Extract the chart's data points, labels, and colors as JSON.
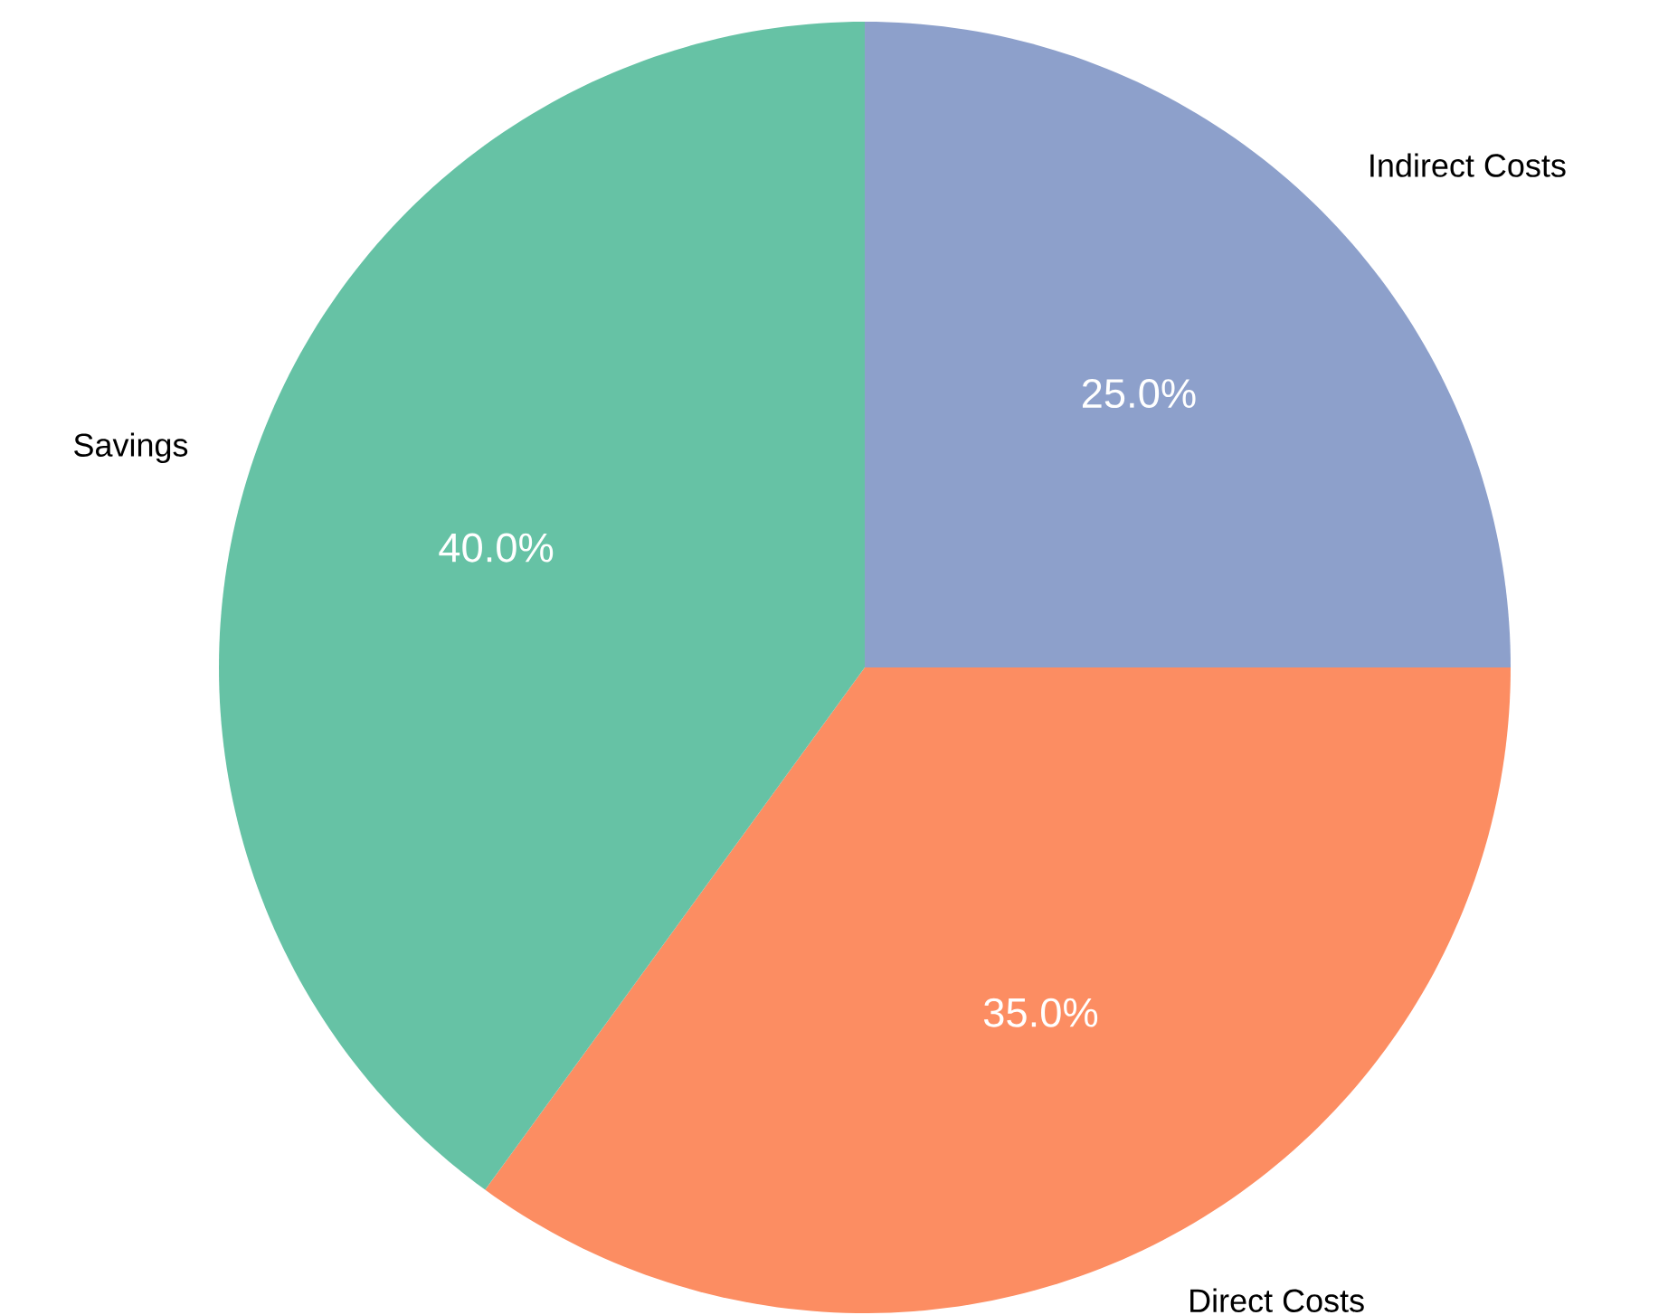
{
  "chart_data": {
    "type": "pie",
    "categories": [
      "Indirect Costs",
      "Direct Costs",
      "Savings"
    ],
    "values": [
      25,
      35,
      40
    ],
    "colors": [
      "#8da0cb",
      "#fc8d62",
      "#66c2a5"
    ],
    "value_labels": [
      "25.0%",
      "35.0%",
      "40.0%"
    ]
  }
}
